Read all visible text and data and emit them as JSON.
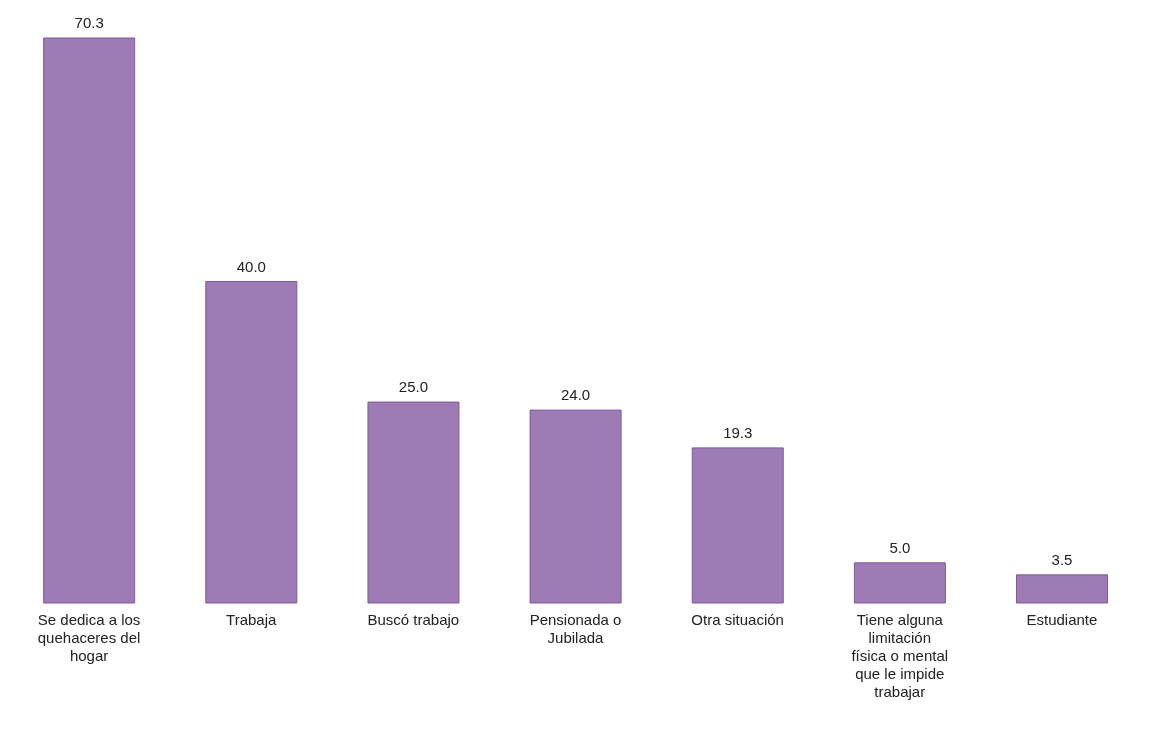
{
  "chart_data": {
    "type": "bar",
    "categories": [
      "Se dedica a los quehaceres del hogar",
      "Trabaja",
      "Buscó trabajo",
      "Pensionada o Jubilada",
      "Otra situación",
      "Tiene alguna limitación física o mental que le impide trabajar",
      "Estudiante"
    ],
    "values": [
      70.3,
      40.0,
      25.0,
      24.0,
      19.3,
      5.0,
      3.5
    ],
    "value_labels": [
      "70.3",
      "40.0",
      "25.0",
      "24.0",
      "19.3",
      "5.0",
      "3.5"
    ],
    "color": "#9e7bb5",
    "grid": false,
    "legend": false
  }
}
